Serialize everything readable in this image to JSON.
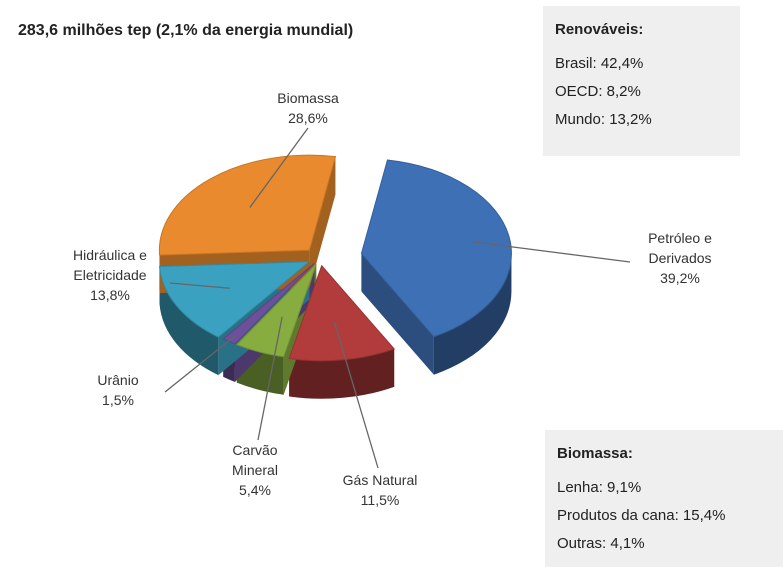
{
  "chart_data": {
    "type": "pie",
    "title": "283,6 milhões tep (2,1% da energia mundial)",
    "categories": [
      "Petróleo e Derivados",
      "Gás Natural",
      "Carvão Mineral",
      "Urânio",
      "Hidráulica e Eletricidade",
      "Biomassa"
    ],
    "values": [
      39.2,
      11.5,
      5.4,
      1.5,
      13.8,
      28.6
    ],
    "value_labels": [
      "39,2%",
      "11,5%",
      "5,4%",
      "1,5%",
      "13,8%",
      "28,6%"
    ],
    "colors": [
      "#3e70b6",
      "#b23c3b",
      "#87ad40",
      "#6c509b",
      "#3ba1c0",
      "#e98a2e"
    ],
    "renewables": {
      "title": "Renováveis:",
      "items": [
        "Brasil: 42,4%",
        "OECD: 8,2%",
        "Mundo: 13,2%"
      ]
    },
    "biomass_breakdown": {
      "title": "Biomassa:",
      "items": [
        "Lenha: 9,1%",
        "Produtos da cana: 15,4%",
        "Outras: 4,1%"
      ]
    }
  }
}
